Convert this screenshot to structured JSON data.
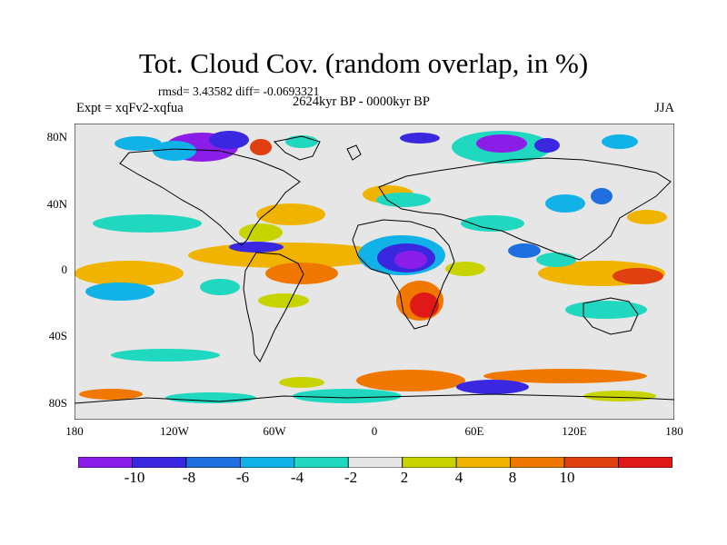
{
  "title": "Tot. Cloud Cov. (random overlap, in %)",
  "stats": "rmsd= 3.43582 diff= -0.0693321",
  "experiment": "Expt = xqFv2-xqfua",
  "period": "2624kyr BP - 0000kyr BP",
  "season": "JJA",
  "lat_labels": [
    "80N",
    "40N",
    "0",
    "40S",
    "80S"
  ],
  "lon_labels": [
    "180",
    "120W",
    "60W",
    "0",
    "60E",
    "120E",
    "180"
  ],
  "colorbar": {
    "labels": [
      "-10",
      "-8",
      "-6",
      "-4",
      "-2",
      "2",
      "4",
      "8",
      "10"
    ],
    "colors": [
      "#8a1ee8",
      "#3a28e0",
      "#1f6fe0",
      "#10b2e8",
      "#20d8c0",
      "#e6e6e6",
      "#c8d400",
      "#f0b400",
      "#f07800",
      "#e04010",
      "#e01818"
    ]
  }
}
